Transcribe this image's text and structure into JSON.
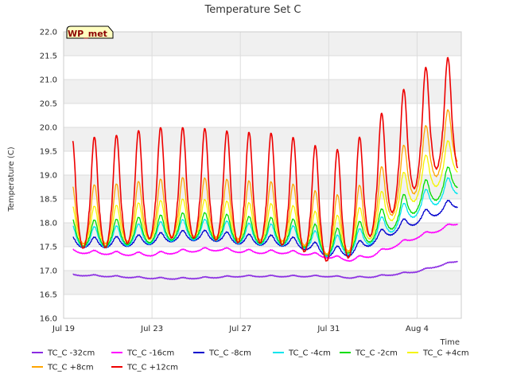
{
  "chart_data": {
    "type": "line",
    "title": "Temperature Set C",
    "xlabel": "Time",
    "ylabel": "Temperature (C)",
    "badge": "WP_met",
    "ylim": [
      16.0,
      22.0
    ],
    "xlim": [
      "2018-07-19",
      "2018-08-06"
    ],
    "yticks": [
      "16.0",
      "16.5",
      "17.0",
      "17.5",
      "18.0",
      "18.5",
      "19.0",
      "19.5",
      "20.0",
      "20.5",
      "21.0",
      "21.5",
      "22.0"
    ],
    "xticks": [
      {
        "date": "2018-07-19",
        "label": "Jul 19"
      },
      {
        "date": "2018-07-23",
        "label": "Jul 23"
      },
      {
        "date": "2018-07-27",
        "label": "Jul 27"
      },
      {
        "date": "2018-07-31",
        "label": "Jul 31"
      },
      {
        "date": "2018-08-04",
        "label": "Aug 4"
      }
    ],
    "grid": true,
    "legend_position": "bottom",
    "series": [
      {
        "name": "TC_C -32cm",
        "color": "#8a2be2",
        "x": [
          "2018-07-19",
          "2018-07-20",
          "2018-07-21",
          "2018-07-22",
          "2018-07-23",
          "2018-07-24",
          "2018-07-25",
          "2018-07-26",
          "2018-07-27",
          "2018-07-28",
          "2018-07-29",
          "2018-07-30",
          "2018-07-31",
          "2018-08-01",
          "2018-08-02",
          "2018-08-03",
          "2018-08-04",
          "2018-08-05",
          "2018-08-06"
        ],
        "y": [
          16.9,
          16.9,
          16.88,
          16.86,
          16.84,
          16.83,
          16.84,
          16.86,
          16.88,
          16.88,
          16.88,
          16.88,
          16.88,
          16.85,
          16.87,
          16.92,
          16.98,
          17.1,
          17.22
        ]
      },
      {
        "name": "TC_C -16cm",
        "color": "#ff00ff",
        "x": [
          "2018-07-19",
          "2018-07-20",
          "2018-07-21",
          "2018-07-22",
          "2018-07-23",
          "2018-07-24",
          "2018-07-25",
          "2018-07-26",
          "2018-07-27",
          "2018-07-28",
          "2018-07-29",
          "2018-07-30",
          "2018-07-31",
          "2018-08-01",
          "2018-08-02",
          "2018-08-03",
          "2018-08-04",
          "2018-08-05",
          "2018-08-06"
        ],
        "y": [
          17.4,
          17.38,
          17.36,
          17.34,
          17.33,
          17.38,
          17.42,
          17.44,
          17.4,
          17.38,
          17.38,
          17.35,
          17.28,
          17.22,
          17.32,
          17.52,
          17.7,
          17.85,
          18.02
        ]
      },
      {
        "name": "TC_C -8cm",
        "color": "#0000cd",
        "x": [
          "2018-07-19",
          "2018-07-20",
          "2018-07-21",
          "2018-07-22",
          "2018-07-23",
          "2018-07-24",
          "2018-07-25",
          "2018-07-26",
          "2018-07-27",
          "2018-07-28",
          "2018-07-29",
          "2018-07-30",
          "2018-07-31",
          "2018-08-01",
          "2018-08-02",
          "2018-08-03",
          "2018-08-04",
          "2018-08-05",
          "2018-08-06"
        ],
        "y": [
          17.55,
          17.55,
          17.55,
          17.58,
          17.62,
          17.68,
          17.7,
          17.68,
          17.62,
          17.6,
          17.58,
          17.5,
          17.35,
          17.38,
          17.62,
          17.85,
          18.05,
          18.25,
          18.42
        ]
      },
      {
        "name": "TC_C -4cm",
        "color": "#00e5ee",
        "x": [
          "2018-07-19",
          "2018-07-20",
          "2018-07-21",
          "2018-07-22",
          "2018-07-23",
          "2018-07-24",
          "2018-07-25",
          "2018-07-26",
          "2018-07-27",
          "2018-07-28",
          "2018-07-29",
          "2018-07-30",
          "2018-07-31",
          "2018-08-01",
          "2018-08-02",
          "2018-08-03",
          "2018-08-04",
          "2018-08-05",
          "2018-08-06"
        ],
        "y": [
          17.65,
          17.62,
          17.62,
          17.66,
          17.7,
          17.76,
          17.78,
          17.76,
          17.7,
          17.68,
          17.66,
          17.6,
          17.42,
          17.48,
          17.72,
          17.98,
          18.3,
          18.55,
          18.78
        ]
      },
      {
        "name": "TC_C -2cm",
        "color": "#00dd00",
        "x": [
          "2018-07-19",
          "2018-07-20",
          "2018-07-21",
          "2018-07-22",
          "2018-07-23",
          "2018-07-24",
          "2018-07-25",
          "2018-07-26",
          "2018-07-27",
          "2018-07-28",
          "2018-07-29",
          "2018-07-30",
          "2018-07-31",
          "2018-08-01",
          "2018-08-02",
          "2018-08-03",
          "2018-08-04",
          "2018-08-05",
          "2018-08-06"
        ],
        "y": [
          17.7,
          17.68,
          17.68,
          17.72,
          17.76,
          17.82,
          17.84,
          17.82,
          17.76,
          17.74,
          17.72,
          17.66,
          17.48,
          17.55,
          17.8,
          18.08,
          18.42,
          18.68,
          18.95
        ]
      },
      {
        "name": "TC_C +4cm",
        "color": "#f5f500",
        "x": [
          "2018-07-19",
          "2018-07-20",
          "2018-07-21",
          "2018-07-22",
          "2018-07-23",
          "2018-07-24",
          "2018-07-25",
          "2018-07-26",
          "2018-07-27",
          "2018-07-28",
          "2018-07-29",
          "2018-07-30",
          "2018-07-31",
          "2018-08-01",
          "2018-08-02",
          "2018-08-03",
          "2018-08-04",
          "2018-08-05",
          "2018-08-06"
        ],
        "y": [
          17.8,
          17.8,
          17.8,
          17.85,
          17.9,
          17.95,
          17.95,
          17.92,
          17.88,
          17.86,
          17.84,
          17.76,
          17.58,
          17.65,
          17.95,
          18.35,
          18.75,
          19.05,
          19.35
        ]
      },
      {
        "name": "TC_C +8cm",
        "color": "#ffa500",
        "x": [
          "2018-07-19",
          "2018-07-20",
          "2018-07-21",
          "2018-07-22",
          "2018-07-23",
          "2018-07-24",
          "2018-07-25",
          "2018-07-26",
          "2018-07-27",
          "2018-07-28",
          "2018-07-29",
          "2018-07-30",
          "2018-07-31",
          "2018-08-01",
          "2018-08-02",
          "2018-08-03",
          "2018-08-04",
          "2018-08-05",
          "2018-08-06"
        ],
        "y": [
          17.9,
          17.95,
          17.95,
          18.0,
          18.05,
          18.1,
          18.1,
          18.08,
          18.04,
          18.02,
          18.0,
          17.9,
          17.7,
          17.8,
          18.15,
          18.6,
          19.05,
          19.4,
          19.7
        ]
      },
      {
        "name": "TC_C +12cm",
        "color": "#ee0000",
        "x": [
          "2018-07-19",
          "2018-07-20",
          "2018-07-21",
          "2018-07-22",
          "2018-07-23",
          "2018-07-24",
          "2018-07-25",
          "2018-07-26",
          "2018-07-27",
          "2018-07-28",
          "2018-07-29",
          "2018-07-30",
          "2018-07-31",
          "2018-08-01",
          "2018-08-02",
          "2018-08-03",
          "2018-08-04",
          "2018-08-05",
          "2018-08-06"
        ],
        "y": [
          18.1,
          18.2,
          18.2,
          18.3,
          18.4,
          18.4,
          18.4,
          18.35,
          18.3,
          18.3,
          18.25,
          18.1,
          17.9,
          18.0,
          18.5,
          19.0,
          19.5,
          19.9,
          19.8
        ]
      }
    ]
  }
}
